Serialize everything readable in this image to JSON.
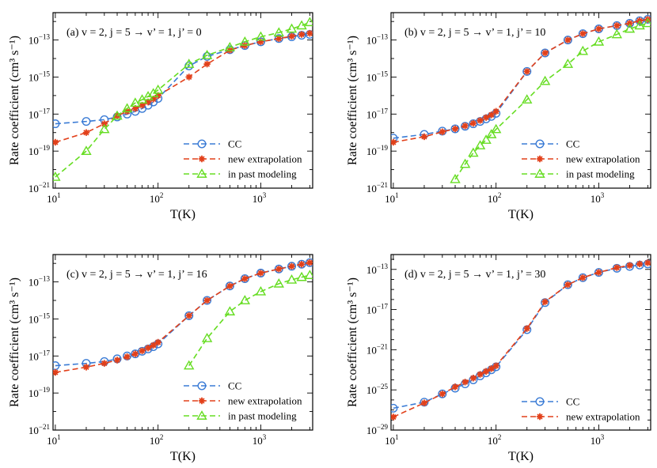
{
  "colors": {
    "CC": "#3a7bd5",
    "new_extrapolation": "#e2401a",
    "in_past_modeling": "#66dd22"
  },
  "chart_data": [
    {
      "type": "line",
      "panel": "a",
      "title": "(a) v = 2, j = 5 → v’ = 1, j’ = 0",
      "xlabel": "T(K)",
      "ylabel": "Rate coefficient (cm³ s⁻¹)",
      "xscale": "log",
      "yscale": "log",
      "xlim": [
        9.5,
        3200
      ],
      "ylim": [
        1e-21,
        3e-12
      ],
      "xticks": [
        {
          "v": 10,
          "b": "10",
          "e": "1"
        },
        {
          "v": 100,
          "b": "10",
          "e": "2"
        },
        {
          "v": 1000,
          "b": "10",
          "e": "3"
        }
      ],
      "yticks": [
        {
          "v": 1e-21,
          "b": "10",
          "e": "−21"
        },
        {
          "v": 1e-19,
          "b": "10",
          "e": "−19"
        },
        {
          "v": 1e-17,
          "b": "10",
          "e": "−17"
        },
        {
          "v": 1e-15,
          "b": "10",
          "e": "−15"
        },
        {
          "v": 1e-13,
          "b": "10",
          "e": "−13"
        }
      ],
      "legend_position": "lower-right",
      "series": [
        {
          "name": "CC",
          "marker": "circle",
          "x": [
            10,
            20,
            30,
            40,
            50,
            60,
            70,
            80,
            90,
            100,
            200,
            300,
            500,
            700,
            1000,
            1500,
            2000,
            2500,
            3000
          ],
          "y": [
            3e-18,
            4e-18,
            5e-18,
            7e-18,
            1e-17,
            1.4e-17,
            2e-17,
            3e-17,
            4.5e-17,
            7e-17,
            4e-15,
            1.3e-14,
            3e-14,
            5e-14,
            8e-14,
            1.2e-13,
            1.5e-13,
            1.8e-13,
            2e-13
          ]
        },
        {
          "name": "new extrapolation",
          "marker": "star",
          "x": [
            10,
            20,
            30,
            40,
            50,
            60,
            70,
            80,
            90,
            100,
            200,
            300,
            500,
            700,
            1000,
            1500,
            2000,
            2500,
            3000
          ],
          "y": [
            3e-19,
            1e-18,
            3e-18,
            8e-18,
            1.4e-17,
            2e-17,
            3e-17,
            4.5e-17,
            6.5e-17,
            1e-16,
            1e-15,
            5e-15,
            2.8e-14,
            5e-14,
            8e-14,
            1.2e-13,
            1.6e-13,
            2e-13,
            2.3e-13
          ]
        },
        {
          "name": "in past modeling",
          "marker": "triangle",
          "x": [
            10,
            20,
            30,
            40,
            50,
            60,
            70,
            80,
            90,
            100,
            200,
            300,
            500,
            700,
            1000,
            1500,
            2000,
            2500,
            3000
          ],
          "y": [
            4e-21,
            1e-19,
            1.5e-18,
            8e-18,
            2e-17,
            4e-17,
            6e-17,
            9e-17,
            1.3e-16,
            2e-16,
            5e-15,
            1.5e-14,
            4e-14,
            8e-14,
            1.5e-13,
            2.5e-13,
            4e-13,
            6e-13,
            9e-13
          ]
        }
      ]
    },
    {
      "type": "line",
      "panel": "b",
      "title": "(b) v = 2, j = 5 → v’ = 1, j’ = 10",
      "xlabel": "T(K)",
      "ylabel": "Rate coefficient (cm³ s⁻¹)",
      "xscale": "log",
      "yscale": "log",
      "xlim": [
        9.5,
        3200
      ],
      "ylim": [
        1e-21,
        3e-12
      ],
      "xticks": [
        {
          "v": 10,
          "b": "10",
          "e": "1"
        },
        {
          "v": 100,
          "b": "10",
          "e": "2"
        },
        {
          "v": 1000,
          "b": "10",
          "e": "3"
        }
      ],
      "yticks": [
        {
          "v": 1e-21,
          "b": "10",
          "e": "−21"
        },
        {
          "v": 1e-19,
          "b": "10",
          "e": "−19"
        },
        {
          "v": 1e-17,
          "b": "10",
          "e": "−17"
        },
        {
          "v": 1e-15,
          "b": "10",
          "e": "−15"
        },
        {
          "v": 1e-13,
          "b": "10",
          "e": "−13"
        }
      ],
      "legend_position": "lower-right",
      "series": [
        {
          "name": "CC",
          "marker": "circle",
          "x": [
            10,
            20,
            30,
            40,
            50,
            60,
            70,
            80,
            90,
            100,
            200,
            300,
            500,
            700,
            1000,
            1500,
            2000,
            2500,
            3000
          ],
          "y": [
            5e-19,
            8e-19,
            1.2e-18,
            1.6e-18,
            2.2e-18,
            3e-18,
            4e-18,
            5.5e-18,
            7.5e-18,
            1.1e-17,
            2e-15,
            2e-14,
            1e-13,
            2.2e-13,
            4e-13,
            6e-13,
            8e-13,
            1.1e-12,
            1.3e-12
          ]
        },
        {
          "name": "new extrapolation",
          "marker": "star",
          "x": [
            10,
            20,
            30,
            40,
            50,
            60,
            70,
            80,
            90,
            100,
            200,
            300,
            500,
            700,
            1000,
            1500,
            2000,
            2500,
            3000
          ],
          "y": [
            3e-19,
            6e-19,
            1.1e-18,
            1.6e-18,
            2.3e-18,
            3.2e-18,
            4.5e-18,
            6.5e-18,
            9e-18,
            1.4e-17,
            2e-15,
            2e-14,
            1e-13,
            2.2e-13,
            4e-13,
            6e-13,
            8e-13,
            1.1e-12,
            1.3e-12
          ]
        },
        {
          "name": "in past modeling",
          "marker": "triangle",
          "x": [
            40,
            50,
            60,
            70,
            80,
            90,
            100,
            200,
            300,
            500,
            700,
            1000,
            1500,
            2000,
            2500,
            3000
          ],
          "y": [
            3e-21,
            2e-20,
            8e-20,
            2e-19,
            4e-19,
            8e-19,
            1.5e-18,
            6e-17,
            6e-16,
            5e-15,
            2.5e-14,
            8e-14,
            2e-13,
            4e-13,
            6e-13,
            8e-13
          ]
        }
      ]
    },
    {
      "type": "line",
      "panel": "c",
      "title": "(c) v = 2, j = 5 → v’ = 1, j’ = 16",
      "xlabel": "T(K)",
      "ylabel": "Rate coefficient (cm³ s⁻¹)",
      "xscale": "log",
      "yscale": "log",
      "xlim": [
        9.5,
        3200
      ],
      "ylim": [
        1e-21,
        3e-12
      ],
      "xticks": [
        {
          "v": 10,
          "b": "10",
          "e": "1"
        },
        {
          "v": 100,
          "b": "10",
          "e": "2"
        },
        {
          "v": 1000,
          "b": "10",
          "e": "3"
        }
      ],
      "yticks": [
        {
          "v": 1e-21,
          "b": "10",
          "e": "−21"
        },
        {
          "v": 1e-19,
          "b": "10",
          "e": "−19"
        },
        {
          "v": 1e-17,
          "b": "10",
          "e": "−17"
        },
        {
          "v": 1e-15,
          "b": "10",
          "e": "−15"
        },
        {
          "v": 1e-13,
          "b": "10",
          "e": "−13"
        }
      ],
      "legend_position": "lower-right",
      "series": [
        {
          "name": "CC",
          "marker": "circle",
          "x": [
            10,
            20,
            30,
            40,
            50,
            60,
            70,
            80,
            90,
            100,
            200,
            300,
            500,
            700,
            1000,
            1500,
            2000,
            2500,
            3000
          ],
          "y": [
            3e-18,
            4e-18,
            5e-18,
            7e-18,
            1e-17,
            1.3e-17,
            1.8e-17,
            2.4e-17,
            3.2e-17,
            4.5e-17,
            1.5e-15,
            1e-14,
            6e-14,
            1.5e-13,
            3e-13,
            5e-13,
            7e-13,
            9e-13,
            1.1e-12
          ]
        },
        {
          "name": "new extrapolation",
          "marker": "star",
          "x": [
            10,
            20,
            30,
            40,
            50,
            60,
            70,
            80,
            90,
            100,
            200,
            300,
            500,
            700,
            1000,
            1500,
            2000,
            2500,
            3000
          ],
          "y": [
            1.3e-18,
            2.5e-18,
            4e-18,
            6e-18,
            9e-18,
            1.3e-17,
            1.9e-17,
            2.7e-17,
            3.8e-17,
            5.5e-17,
            1.5e-15,
            1e-14,
            6e-14,
            1.5e-13,
            3e-13,
            5e-13,
            7e-13,
            9e-13,
            1.1e-12
          ]
        },
        {
          "name": "in past modeling",
          "marker": "triangle",
          "x": [
            200,
            300,
            500,
            700,
            1000,
            1500,
            2000,
            2500,
            3000
          ],
          "y": [
            3e-18,
            9e-17,
            2.5e-15,
            1e-14,
            3e-14,
            8e-14,
            1.3e-13,
            1.8e-13,
            2.3e-13
          ]
        }
      ]
    },
    {
      "type": "line",
      "panel": "d",
      "title": "(d) v = 2, j = 5 → v’ = 1, j’ = 30",
      "xlabel": "T(K)",
      "ylabel": "Rate coefficient (cm³ s⁻¹)",
      "xscale": "log",
      "yscale": "log",
      "xlim": [
        9.5,
        3200
      ],
      "ylim": [
        1e-29,
        3e-12
      ],
      "xticks": [
        {
          "v": 10,
          "b": "10",
          "e": "1"
        },
        {
          "v": 100,
          "b": "10",
          "e": "2"
        },
        {
          "v": 1000,
          "b": "10",
          "e": "3"
        }
      ],
      "yticks": [
        {
          "v": 1e-29,
          "b": "10",
          "e": "−29"
        },
        {
          "v": 1e-25,
          "b": "10",
          "e": "−25"
        },
        {
          "v": 1e-21,
          "b": "10",
          "e": "−21"
        },
        {
          "v": 1e-17,
          "b": "10",
          "e": "−17"
        },
        {
          "v": 1e-13,
          "b": "10",
          "e": "−13"
        }
      ],
      "legend_position": "lower-right",
      "series": [
        {
          "name": "CC",
          "marker": "circle",
          "x": [
            10,
            20,
            30,
            40,
            50,
            60,
            70,
            80,
            90,
            100,
            200,
            300,
            500,
            700,
            1000,
            1500,
            2000,
            2500,
            3000
          ],
          "y": [
            1.5e-27,
            6e-27,
            4e-26,
            1.5e-25,
            4e-25,
            1e-24,
            2.5e-24,
            5e-24,
            1e-23,
            2e-23,
            1e-19,
            5e-17,
            3e-15,
            1.5e-14,
            5e-14,
            1.3e-13,
            2e-13,
            2.7e-13,
            3.5e-13
          ]
        },
        {
          "name": "new extrapolation",
          "marker": "star",
          "x": [
            10,
            20,
            30,
            40,
            50,
            60,
            70,
            80,
            90,
            100,
            200,
            300,
            500,
            700,
            1000,
            1500,
            2000,
            2500,
            3000
          ],
          "y": [
            2e-28,
            5e-27,
            4e-26,
            2e-25,
            6e-25,
            1.5e-24,
            3.5e-24,
            7e-24,
            1.3e-23,
            2.5e-23,
            1.3e-19,
            6e-17,
            3e-15,
            1.5e-14,
            5e-14,
            1.5e-13,
            2.5e-13,
            3.5e-13,
            4.5e-13
          ]
        }
      ]
    }
  ]
}
